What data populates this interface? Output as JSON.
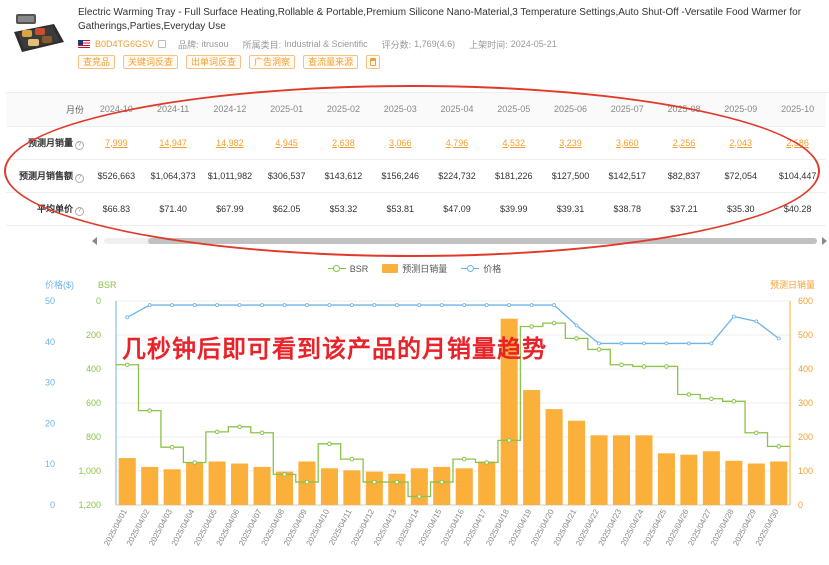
{
  "product": {
    "title": "Electric Warming Tray - Full Surface Heating,Rollable & Portable,Premium Silicone Nano-Material,3 Temperature Settings,Auto Shut-Off -Versatile Food Warmer for Gatherings,Parties,Everyday Use",
    "asin": "B0D4TG6GSV",
    "brand_label": "品牌:",
    "brand": "itrusou",
    "category_label": "所属类目:",
    "category": "Industrial & Scientific",
    "rating_label": "评分数:",
    "rating": "1,769(4.6)",
    "listed_label": "上架时间:",
    "listed": "2024-05-21",
    "actions": [
      "查竞品",
      "关键词反查",
      "出单词反查",
      "广告洞察",
      "查流量来源"
    ],
    "calc_icon": "calculator-icon"
  },
  "monthly": {
    "month_header": "月份",
    "months": [
      "2024-10",
      "2024-11",
      "2024-12",
      "2025-01",
      "2025-02",
      "2025-03",
      "2025-04",
      "2025-05",
      "2025-06",
      "2025-07",
      "2025-08",
      "2025-09",
      "2025-10"
    ],
    "volume_label": "预测月销量",
    "volumes": [
      "7,999",
      "14,947",
      "14,982",
      "4,945",
      "2,638",
      "3,066",
      "4,796",
      "4,532",
      "3,239",
      "3,660",
      "2,256",
      "2,043",
      "2,586"
    ],
    "revenue_label": "预测月销售额",
    "revenues": [
      "$526,663",
      "$1,064,373",
      "$1,011,982",
      "$306,537",
      "$143,612",
      "$156,246",
      "$224,732",
      "$181,226",
      "$127,500",
      "$142,517",
      "$82,837",
      "$72,054",
      "$104,447"
    ],
    "price_label": "平均单价",
    "prices": [
      "$66.83",
      "$71.40",
      "$67.99",
      "$62.05",
      "$53.32",
      "$53.81",
      "$47.09",
      "$39.99",
      "$39.31",
      "$38.78",
      "$37.21",
      "$35.30",
      "$40.28"
    ]
  },
  "overlay_text": "几秒钟后即可看到该产品的月销量趋势",
  "chart_data": {
    "type": "bar",
    "legend": [
      "BSR",
      "预测日销量",
      "价格"
    ],
    "legend_position": "top-center",
    "colors": {
      "bsr": "#8bc34a",
      "sales": "#fbb03b",
      "price": "#6fb4e8"
    },
    "left_axis_price": {
      "label": "价格($)",
      "range": [
        0,
        50
      ],
      "ticks": [
        "0",
        "10",
        "20",
        "30",
        "40",
        "50"
      ]
    },
    "left_axis_bsr": {
      "label": "BSR",
      "range": [
        0,
        1200
      ],
      "inverted": true,
      "ticks": [
        "0",
        "200",
        "400",
        "600",
        "800",
        "1,000",
        "1,200"
      ]
    },
    "right_axis": {
      "label": "预测日销量",
      "range": [
        0,
        600
      ],
      "ticks": [
        "0",
        "100",
        "200",
        "300",
        "400",
        "500",
        "600"
      ]
    },
    "categories": [
      "2025/04/01",
      "2025/04/02",
      "2025/04/03",
      "2025/04/04",
      "2025/04/05",
      "2025/04/06",
      "2025/04/07",
      "2025/04/08",
      "2025/04/09",
      "2025/04/10",
      "2025/04/11",
      "2025/04/12",
      "2025/04/13",
      "2025/04/14",
      "2025/04/15",
      "2025/04/16",
      "2025/04/17",
      "2025/04/18",
      "2025/04/19",
      "2025/04/20",
      "2025/04/21",
      "2025/04/22",
      "2025/04/23",
      "2025/04/24",
      "2025/04/25",
      "2025/04/26",
      "2025/04/27",
      "2025/04/28",
      "2025/04/29",
      "2025/04/30"
    ],
    "series": [
      {
        "name": "预测日销量",
        "kind": "bar",
        "axis": "right",
        "values": [
          138,
          112,
          105,
          125,
          128,
          122,
          112,
          98,
          128,
          108,
          102,
          98,
          92,
          108,
          112,
          108,
          128,
          548,
          338,
          282,
          248,
          205,
          205,
          205,
          152,
          148,
          158,
          130,
          122,
          128
        ]
      },
      {
        "name": "BSR",
        "kind": "step-line",
        "axis": "left-bsr",
        "values": [
          375,
          645,
          860,
          950,
          770,
          740,
          775,
          1020,
          1065,
          840,
          930,
          1065,
          1065,
          1150,
          1065,
          930,
          950,
          820,
          150,
          130,
          220,
          285,
          375,
          385,
          385,
          550,
          575,
          590,
          775,
          855
        ]
      },
      {
        "name": "价格",
        "kind": "line",
        "axis": "left-price",
        "values": [
          46.0,
          49.0,
          49.0,
          49.0,
          49.0,
          49.0,
          49.0,
          49.0,
          49.0,
          49.0,
          49.0,
          49.0,
          49.0,
          49.0,
          49.0,
          49.0,
          49.0,
          49.0,
          49.0,
          49.0,
          44.0,
          39.6,
          39.6,
          39.6,
          39.6,
          39.6,
          39.6,
          46.2,
          45.0,
          40.8
        ]
      }
    ]
  }
}
